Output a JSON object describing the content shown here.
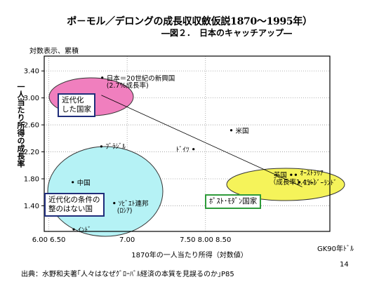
{
  "header": {
    "title": "ポ－モル／デロングの成長収収斂仮説1870～1995年）",
    "subtitle": "―図２．　日本のキャッチアップ―",
    "scale_note": "対数表示、累積",
    "unit": "GK90年ﾄﾞﾙ",
    "page_number": "14",
    "source": "出典：水野和夫著｢人々はなぜｸﾞﾛｰﾊﾞﾙ経済の本質を見誤るのか｣P85"
  },
  "chart_data": {
    "type": "scatter",
    "xlabel": "1870年の一人当たり所得（対数値）",
    "ylabel": "一人当たり所得の成長率",
    "x_tick_labels": [
      "6.00 6.50",
      "7.00",
      "7.50 8.00 8.50"
    ],
    "x_tick_positions": [
      6.15,
      7.0,
      7.85
    ],
    "xlim": [
      6.1,
      9.2
    ],
    "ylim": [
      1.02,
      3.62
    ],
    "yticks": [
      "3.40",
      "3.00",
      "2.60",
      "2.20",
      "1.80",
      "1.40"
    ],
    "grid": true,
    "points": [
      {
        "label": "日本＝20世紀の新興国",
        "x": 6.73,
        "y": 3.3
      },
      {
        "label": "(2.7%成長率)",
        "x": null,
        "y": null
      },
      {
        "label": "ﾌﾞﾗｼﾞﾙ",
        "x": 6.72,
        "y": 2.28
      },
      {
        "label": "中国",
        "x": 6.41,
        "y": 1.75
      },
      {
        "label": "ｿﾋﾞｴﾄ連邦",
        "x": 6.86,
        "y": 1.44
      },
      {
        "label": "(ﾛｼｱ)",
        "x": null,
        "y": null
      },
      {
        "label": "ｲﾝﾄﾞ",
        "x": 6.42,
        "y": 1.05
      },
      {
        "label": "ﾄﾞｲﾂ",
        "x": 7.72,
        "y": 2.24
      },
      {
        "label": "米国",
        "x": 8.13,
        "y": 2.52
      },
      {
        "label": "英国",
        "x": 8.78,
        "y": 1.86
      },
      {
        "label": "ｵｰｽﾄﾗﾘｱ",
        "x": 8.83,
        "y": 1.86
      },
      {
        "label": "ﾆｭｰｼﾞｰﾗﾝﾄﾞ",
        "x": 8.87,
        "y": 1.75
      },
      {
        "label": "（成長率1.4%）",
        "x": null,
        "y": null
      }
    ],
    "trend_line": {
      "x": [
        6.72,
        8.9
      ],
      "y": [
        3.04,
        1.68
      ]
    },
    "groups": [
      {
        "label": "近代化\nした国家",
        "color": "#f07fbe"
      },
      {
        "label": "近代化の条件の\n整のはない国",
        "color": "#b5f2f5"
      },
      {
        "label": "ﾎﾟｽﾄ･ﾓﾀﾞﾝ国家",
        "color": "#f5f35a"
      }
    ]
  }
}
